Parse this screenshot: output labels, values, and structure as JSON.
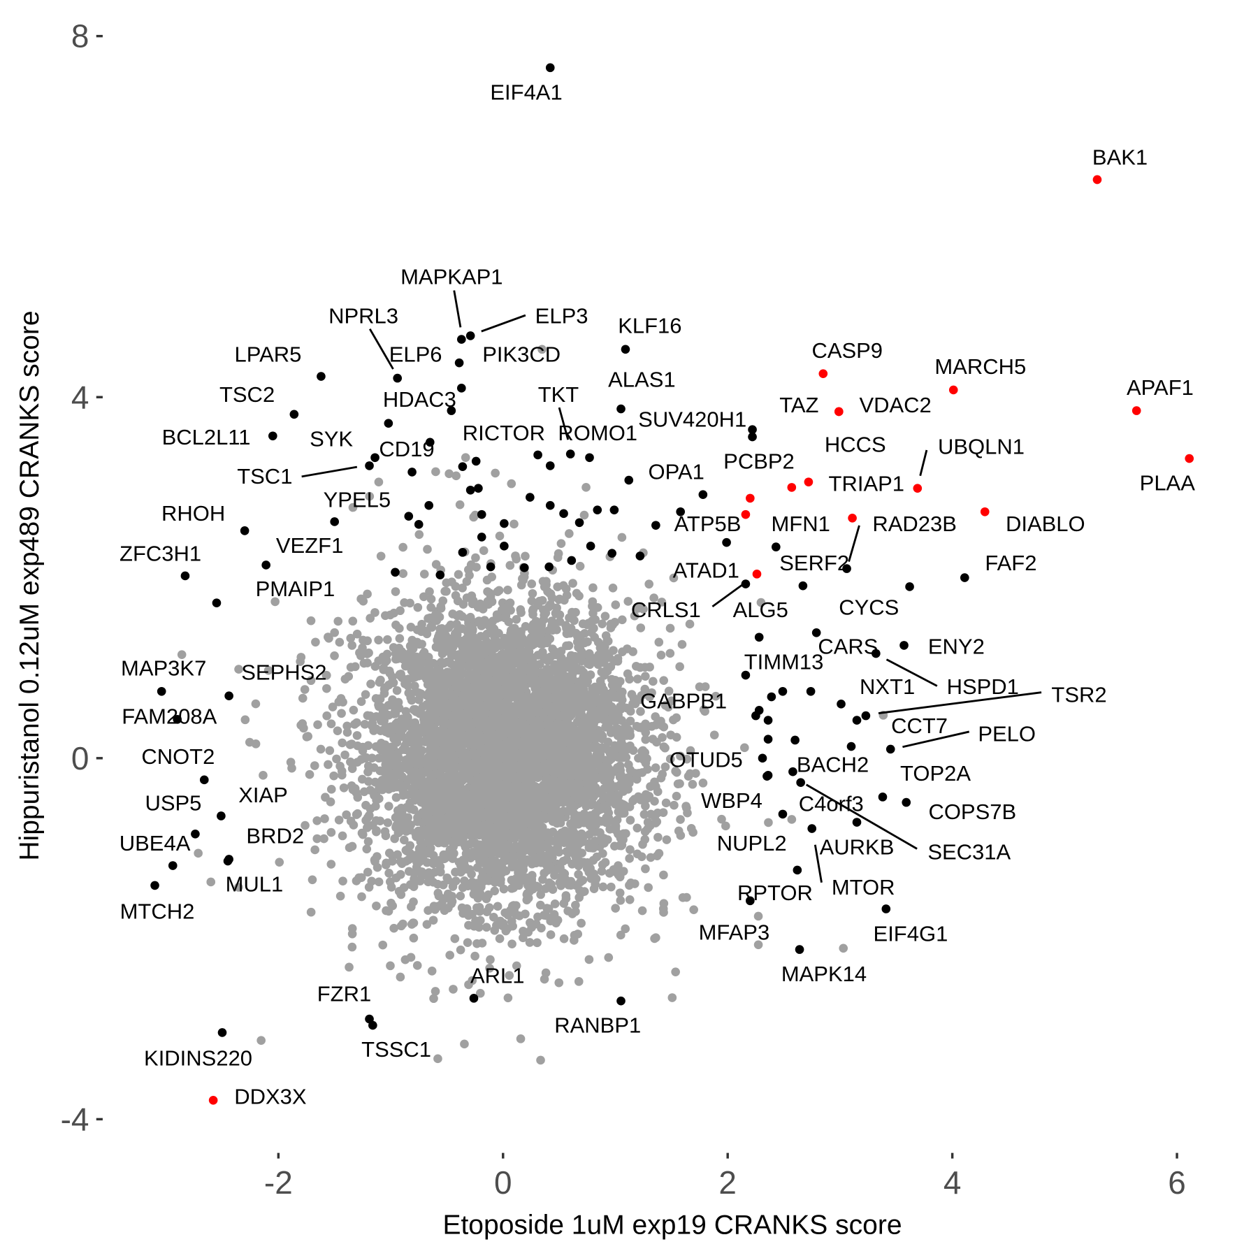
{
  "chart_data": {
    "type": "scatter",
    "title": "",
    "xlabel": "Etoposide 1uM exp19 CRANKS score",
    "ylabel": "Hippuristanol 0.12uM exp489 CRANKS score",
    "xlim": [
      -3.3,
      6.5
    ],
    "ylim": [
      -4.4,
      8.4
    ],
    "x_ticks": [
      -2,
      0,
      2,
      4,
      6
    ],
    "y_ticks": [
      -4,
      0,
      4,
      8
    ],
    "grid": false,
    "colors": {
      "background_points": "#a0a0a0",
      "highlight": "#000000",
      "red": "#ff0000"
    },
    "labeled_points": [
      {
        "label": "EIF4A1",
        "x": 0.42,
        "y": 7.65,
        "color": "black"
      },
      {
        "label": "BAK1",
        "x": 5.29,
        "y": 6.41,
        "color": "red"
      },
      {
        "label": "MAPKAP1",
        "x": -0.37,
        "y": 4.64,
        "color": "black"
      },
      {
        "label": "ELP3",
        "x": -0.29,
        "y": 4.68,
        "color": "black"
      },
      {
        "label": "PIK3CD",
        "x": -0.39,
        "y": 4.38,
        "color": "black"
      },
      {
        "label": "NPRL3",
        "x": -0.94,
        "y": 4.21,
        "color": "black"
      },
      {
        "label": "ELP6",
        "x": -0.37,
        "y": 4.1,
        "color": "black"
      },
      {
        "label": "LPAR5",
        "x": -1.62,
        "y": 4.23,
        "color": "black"
      },
      {
        "label": "KLF16",
        "x": 1.09,
        "y": 4.53,
        "color": "black"
      },
      {
        "label": "CASP9",
        "x": 2.85,
        "y": 4.26,
        "color": "red"
      },
      {
        "label": "MARCH5",
        "x": 4.01,
        "y": 4.08,
        "color": "red"
      },
      {
        "label": "APAF1",
        "x": 5.64,
        "y": 3.85,
        "color": "red"
      },
      {
        "label": "TSC2",
        "x": -1.86,
        "y": 3.81,
        "color": "black"
      },
      {
        "label": "HDAC3",
        "x": -1.02,
        "y": 3.71,
        "color": "black"
      },
      {
        "label": "TKT",
        "x": 0.6,
        "y": 3.37,
        "color": "black"
      },
      {
        "label": "ALAS1",
        "x": 1.05,
        "y": 3.87,
        "color": "black"
      },
      {
        "label": "TAZ",
        "x": 2.99,
        "y": 3.84,
        "color": "red"
      },
      {
        "label": "VDAC2",
        "x": 2.99,
        "y": 3.84,
        "color": "red"
      },
      {
        "label": "BCL2L11",
        "x": -2.05,
        "y": 3.57,
        "color": "black"
      },
      {
        "label": "SYK",
        "x": -0.65,
        "y": 3.5,
        "color": "black"
      },
      {
        "label": "SUV420H1",
        "x": 2.22,
        "y": 3.64,
        "color": "black"
      },
      {
        "label": "RICTOR",
        "x": 0.42,
        "y": 3.24,
        "color": "black"
      },
      {
        "label": "ROMO1",
        "x": 0.77,
        "y": 3.33,
        "color": "black"
      },
      {
        "label": "PLAA",
        "x": 6.11,
        "y": 3.32,
        "color": "red"
      },
      {
        "label": "TSC1",
        "x": -1.19,
        "y": 3.24,
        "color": "black"
      },
      {
        "label": "CD19",
        "x": -1.14,
        "y": 3.33,
        "color": "black"
      },
      {
        "label": "UBQLN1",
        "x": 3.69,
        "y": 2.99,
        "color": "red"
      },
      {
        "label": "TRIAP1",
        "x": 2.72,
        "y": 3.06,
        "color": "red"
      },
      {
        "label": "HCCS",
        "x": 2.57,
        "y": 3.0,
        "color": "red"
      },
      {
        "label": "PCBP2",
        "x": 2.2,
        "y": 2.88,
        "color": "red"
      },
      {
        "label": "MFN1",
        "x": 2.16,
        "y": 2.7,
        "color": "red"
      },
      {
        "label": "RAD23B",
        "x": 3.11,
        "y": 2.66,
        "color": "red"
      },
      {
        "label": "DIABLO",
        "x": 4.29,
        "y": 2.73,
        "color": "red"
      },
      {
        "label": "OPA1",
        "x": 1.12,
        "y": 3.08,
        "color": "black"
      },
      {
        "label": "YPEL5",
        "x": -1.5,
        "y": 2.62,
        "color": "black"
      },
      {
        "label": "RHOH",
        "x": -2.3,
        "y": 2.52,
        "color": "black"
      },
      {
        "label": "ATP5B",
        "x": 1.99,
        "y": 2.39,
        "color": "black"
      },
      {
        "label": "VEZF1",
        "x": -2.11,
        "y": 2.14,
        "color": "black"
      },
      {
        "label": "ZFC3H1",
        "x": -2.83,
        "y": 2.02,
        "color": "black"
      },
      {
        "label": "ATAD1",
        "x": 2.26,
        "y": 2.04,
        "color": "red"
      },
      {
        "label": "SERF2",
        "x": 3.06,
        "y": 2.1,
        "color": "black"
      },
      {
        "label": "FAF2",
        "x": 4.11,
        "y": 2.0,
        "color": "black"
      },
      {
        "label": "CRLS1",
        "x": 2.16,
        "y": 1.93,
        "color": "black"
      },
      {
        "label": "PMAIP1",
        "x": -2.55,
        "y": 1.72,
        "color": "black"
      },
      {
        "label": "ALG5",
        "x": 2.28,
        "y": 1.34,
        "color": "black"
      },
      {
        "label": "CYCS",
        "x": 3.62,
        "y": 1.9,
        "color": "black"
      },
      {
        "label": "CARS",
        "x": 2.79,
        "y": 1.39,
        "color": "black"
      },
      {
        "label": "ENY2",
        "x": 3.57,
        "y": 1.25,
        "color": "black"
      },
      {
        "label": "HSPD1",
        "x": 3.32,
        "y": 1.16,
        "color": "black"
      },
      {
        "label": "TIMM13",
        "x": 2.16,
        "y": 0.92,
        "color": "black"
      },
      {
        "label": "MAP3K7",
        "x": -3.04,
        "y": 0.74,
        "color": "black"
      },
      {
        "label": "SEPHS2",
        "x": -2.44,
        "y": 0.69,
        "color": "black"
      },
      {
        "label": "NXT1",
        "x": 3.01,
        "y": 0.6,
        "color": "black"
      },
      {
        "label": "TSR2",
        "x": 3.23,
        "y": 0.47,
        "color": "black"
      },
      {
        "label": "GABPB1",
        "x": 2.25,
        "y": 0.47,
        "color": "black"
      },
      {
        "label": "FAM208A",
        "x": -2.9,
        "y": 0.43,
        "color": "black"
      },
      {
        "label": "CCT7",
        "x": 3.15,
        "y": 0.42,
        "color": "black"
      },
      {
        "label": "PELO",
        "x": 3.45,
        "y": 0.1,
        "color": "black"
      },
      {
        "label": "TOP2A",
        "x": 3.1,
        "y": 0.13,
        "color": "black"
      },
      {
        "label": "CNOT2",
        "x": -2.66,
        "y": -0.24,
        "color": "black"
      },
      {
        "label": "OTUD5",
        "x": 2.31,
        "y": 0.0,
        "color": "black"
      },
      {
        "label": "BACH2",
        "x": 2.58,
        "y": -0.15,
        "color": "black"
      },
      {
        "label": "XIAP",
        "x": -2.51,
        "y": -0.64,
        "color": "black"
      },
      {
        "label": "USP5",
        "x": -2.74,
        "y": -0.84,
        "color": "black"
      },
      {
        "label": "WBP4",
        "x": 2.35,
        "y": -0.2,
        "color": "black"
      },
      {
        "label": "C4orf3",
        "x": 3.15,
        "y": -0.71,
        "color": "black"
      },
      {
        "label": "COPS7B",
        "x": 3.59,
        "y": -0.49,
        "color": "black"
      },
      {
        "label": "SEC31A",
        "x": 2.65,
        "y": -0.27,
        "color": "black"
      },
      {
        "label": "UBE4A",
        "x": -2.94,
        "y": -1.19,
        "color": "black"
      },
      {
        "label": "BRD2",
        "x": -2.44,
        "y": -1.12,
        "color": "black"
      },
      {
        "label": "NUPL2",
        "x": 2.49,
        "y": -0.62,
        "color": "black"
      },
      {
        "label": "AURKB",
        "x": 3.38,
        "y": -0.43,
        "color": "black"
      },
      {
        "label": "MTOR",
        "x": 2.75,
        "y": -0.78,
        "color": "black"
      },
      {
        "label": "MUL1",
        "x": -2.45,
        "y": -1.14,
        "color": "black"
      },
      {
        "label": "MTCH2",
        "x": -3.1,
        "y": -1.41,
        "color": "black"
      },
      {
        "label": "RPTOR",
        "x": 2.62,
        "y": -1.24,
        "color": "black"
      },
      {
        "label": "EIF4G1",
        "x": 3.41,
        "y": -1.67,
        "color": "black"
      },
      {
        "label": "MFAP3",
        "x": 2.2,
        "y": -1.58,
        "color": "black"
      },
      {
        "label": "MAPK14",
        "x": 2.64,
        "y": -2.12,
        "color": "black"
      },
      {
        "label": "ARL1",
        "x": -0.26,
        "y": -2.66,
        "color": "black"
      },
      {
        "label": "RANBP1",
        "x": 1.05,
        "y": -2.69,
        "color": "black"
      },
      {
        "label": "FZR1",
        "x": -1.19,
        "y": -2.89,
        "color": "black"
      },
      {
        "label": "TSSC1",
        "x": -1.16,
        "y": -2.96,
        "color": "black"
      },
      {
        "label": "KIDINS220",
        "x": -2.5,
        "y": -3.04,
        "color": "black"
      },
      {
        "label": "DDX3X",
        "x": -2.58,
        "y": -3.79,
        "color": "red"
      }
    ],
    "unlabeled_highlight_points": [
      [
        -0.46,
        3.85
      ],
      [
        -0.81,
        3.17
      ],
      [
        -0.36,
        3.23
      ],
      [
        -0.24,
        3.29
      ],
      [
        -0.29,
        2.97
      ],
      [
        -0.22,
        2.99
      ],
      [
        -0.66,
        2.8
      ],
      [
        -0.84,
        2.68
      ],
      [
        -0.75,
        2.59
      ],
      [
        -0.19,
        2.7
      ],
      [
        0.01,
        2.6
      ],
      [
        0.24,
        2.89
      ],
      [
        0.31,
        3.36
      ],
      [
        0.42,
        2.8
      ],
      [
        0.54,
        2.71
      ],
      [
        0.68,
        2.61
      ],
      [
        0.84,
        2.75
      ],
      [
        0.99,
        2.75
      ],
      [
        -0.19,
        2.45
      ],
      [
        0.01,
        2.35
      ],
      [
        -0.36,
        2.28
      ],
      [
        -0.96,
        2.06
      ],
      [
        -0.56,
        2.03
      ],
      [
        -0.11,
        2.12
      ],
      [
        0.19,
        2.11
      ],
      [
        0.41,
        2.12
      ],
      [
        0.61,
        2.19
      ],
      [
        0.78,
        2.35
      ],
      [
        0.97,
        2.27
      ],
      [
        1.22,
        2.24
      ],
      [
        1.36,
        2.58
      ],
      [
        1.58,
        2.73
      ],
      [
        1.78,
        2.92
      ],
      [
        2.43,
        2.34
      ],
      [
        2.67,
        1.91
      ],
      [
        2.74,
        0.74
      ],
      [
        2.49,
        0.74
      ],
      [
        2.39,
        0.68
      ],
      [
        2.28,
        0.53
      ],
      [
        2.36,
        0.42
      ],
      [
        2.36,
        0.21
      ],
      [
        2.6,
        0.2
      ],
      [
        2.36,
        -0.19
      ],
      [
        2.22,
        3.56
      ]
    ]
  }
}
